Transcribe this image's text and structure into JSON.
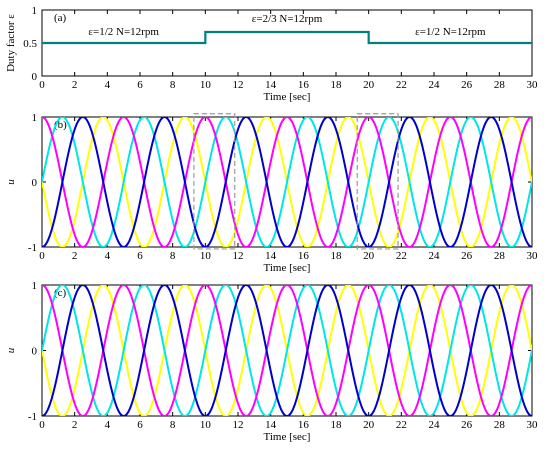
{
  "chart_data": [
    {
      "panel_label": "(a)",
      "type": "line",
      "xlabel": "Time [sec]",
      "ylabel": "Duty factor ε",
      "xlim": [
        0,
        30
      ],
      "ylim": [
        0,
        1
      ],
      "xticks": [
        0,
        2,
        4,
        6,
        8,
        10,
        12,
        14,
        16,
        18,
        20,
        22,
        24,
        26,
        28,
        30
      ],
      "yticks": [
        0,
        0.5,
        1
      ],
      "series": [
        {
          "color": "#008080",
          "x": [
            0,
            10,
            10,
            20,
            20,
            30
          ],
          "y": [
            0.5,
            0.5,
            0.667,
            0.667,
            0.5,
            0.5
          ]
        }
      ],
      "annotations": [
        {
          "text": "ε=1/2 N=12rpm",
          "x": 5,
          "y": 0.62
        },
        {
          "text": "ε=2/3 N=12rpm",
          "x": 15,
          "y": 0.82
        },
        {
          "text": "ε=1/2 N=12rpm",
          "x": 25,
          "y": 0.62
        }
      ]
    },
    {
      "panel_label": "(b)",
      "type": "line",
      "xlabel": "Time [sec]",
      "ylabel": "u",
      "xlim": [
        0,
        30
      ],
      "ylim": [
        -1,
        1
      ],
      "xticks": [
        0,
        2,
        4,
        6,
        8,
        10,
        12,
        14,
        16,
        18,
        20,
        22,
        24,
        26,
        28,
        30
      ],
      "yticks": [
        -1,
        0,
        1
      ],
      "series": [
        {
          "color": "#ff00ff",
          "phase_offset": 0,
          "dashed_highlight_boxes": true
        },
        {
          "color": "#00e5e5",
          "phase_offset": 0.25
        },
        {
          "color": "#0000cc",
          "phase_offset": 0.5
        },
        {
          "color": "#ffff00",
          "phase_offset": 0.75
        }
      ],
      "period_sec": 5,
      "highlight_boxes": [
        {
          "x": [
            9.3,
            11.8
          ],
          "y": [
            -1.03,
            1.05
          ]
        },
        {
          "x": [
            19.3,
            21.8
          ],
          "y": [
            -1.03,
            1.05
          ]
        }
      ]
    },
    {
      "panel_label": "(c)",
      "type": "line",
      "xlabel": "Time [sec]",
      "ylabel": "u",
      "xlim": [
        0,
        30
      ],
      "ylim": [
        -1,
        1
      ],
      "xticks": [
        0,
        2,
        4,
        6,
        8,
        10,
        12,
        14,
        16,
        18,
        20,
        22,
        24,
        26,
        28,
        30
      ],
      "yticks": [
        -1,
        0,
        1
      ],
      "series": [
        {
          "color": "#ff00ff",
          "phase_offset": 0
        },
        {
          "color": "#00e5e5",
          "phase_offset": 0.25
        },
        {
          "color": "#0000cc",
          "phase_offset": 0.5
        },
        {
          "color": "#ffff00",
          "phase_offset": 0.75
        }
      ],
      "period_sec": 5
    }
  ]
}
